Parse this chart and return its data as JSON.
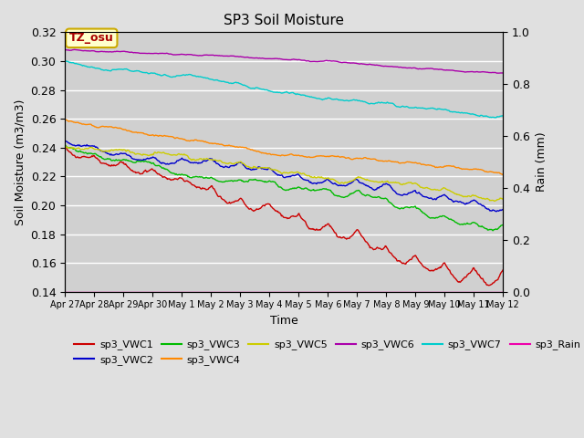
{
  "title": "SP3 Soil Moisture",
  "xlabel": "Time",
  "ylabel_left": "Soil Moisture (m3/m3)",
  "ylabel_right": "Rain (mm)",
  "ylim_left": [
    0.14,
    0.32
  ],
  "ylim_right": [
    0.0,
    1.0
  ],
  "bg_color": "#e0e0e0",
  "plot_bg_color": "#d0d0d0",
  "annotation_text": "TZ_osu",
  "annotation_bg": "#ffffcc",
  "annotation_border": "#ccaa00",
  "annotation_text_color": "#aa0000",
  "series": {
    "sp3_VWC1": {
      "color": "#cc0000",
      "lw": 1.0
    },
    "sp3_VWC2": {
      "color": "#0000cc",
      "lw": 1.0
    },
    "sp3_VWC3": {
      "color": "#00bb00",
      "lw": 1.0
    },
    "sp3_VWC4": {
      "color": "#ff8800",
      "lw": 1.0
    },
    "sp3_VWC5": {
      "color": "#cccc00",
      "lw": 1.0
    },
    "sp3_VWC6": {
      "color": "#aa00aa",
      "lw": 1.0
    },
    "sp3_VWC7": {
      "color": "#00cccc",
      "lw": 1.0
    },
    "sp3_Rain": {
      "color": "#ee00aa",
      "lw": 1.0
    }
  },
  "xtick_labels": [
    "Apr 27",
    "Apr 28",
    "Apr 29",
    "Apr 30",
    "May 1",
    "May 2",
    "May 3",
    "May 4",
    "May 5",
    "May 6",
    "May 7",
    "May 8",
    "May 9",
    "May 10",
    "May 11",
    "May 12"
  ],
  "yticks_left": [
    0.14,
    0.16,
    0.18,
    0.2,
    0.22,
    0.24,
    0.26,
    0.28,
    0.3,
    0.32
  ],
  "yticks_right": [
    0.0,
    0.2,
    0.4,
    0.6,
    0.8,
    1.0
  ],
  "fontsize": 9,
  "title_fontsize": 11
}
